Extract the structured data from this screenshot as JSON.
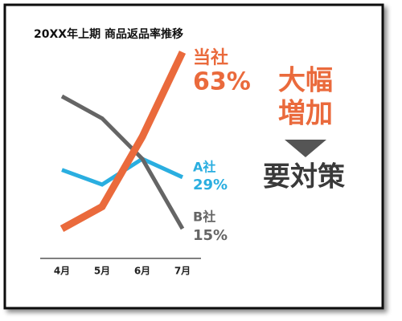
{
  "chart_data": {
    "type": "line",
    "title": "20XX年上期 商品返品率推移",
    "categories": [
      "4月",
      "5月",
      "6月",
      "7月"
    ],
    "series": [
      {
        "name": "当社",
        "color": "#ea6a3c",
        "values": [
          15,
          21,
          40,
          63
        ],
        "value_labels": [
          null,
          null,
          null,
          "63%"
        ]
      },
      {
        "name": "A社",
        "color": "#2aaee0",
        "values": [
          31,
          27,
          34,
          29
        ],
        "value_labels": [
          null,
          null,
          null,
          "29%"
        ]
      },
      {
        "name": "B社",
        "color": "#656565",
        "values": [
          51,
          45,
          34,
          15
        ],
        "value_labels": [
          null,
          null,
          null,
          "15%"
        ]
      }
    ],
    "annotations": [
      "大幅",
      "増加",
      "要対策"
    ]
  }
}
